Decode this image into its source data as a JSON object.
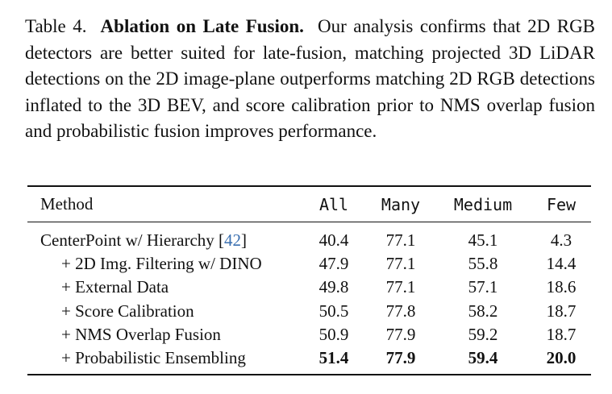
{
  "caption": {
    "label": "Table 4.",
    "title": "Ablation on Late Fusion.",
    "text": "Our analysis confirms that 2D RGB detectors are better suited for late-fusion, matching projected 3D LiDAR detections on the 2D image-plane outperforms matching 2D RGB detections inflated to the 3D BEV, and score calibration prior to NMS overlap fusion and probabilistic fusion improves performance."
  },
  "table": {
    "headers": {
      "method": "Method",
      "all": "All",
      "many": "Many",
      "medium": "Medium",
      "few": "Few"
    },
    "rows": [
      {
        "method": "CenterPoint w/ Hierarchy [",
        "cite": "42",
        "method_suffix": "]",
        "all": "40.4",
        "many": "77.1",
        "medium": "45.1",
        "few": "4.3"
      },
      {
        "method": "+ 2D Img. Filtering w/ DINO",
        "all": "47.9",
        "many": "77.1",
        "medium": "55.8",
        "few": "14.4"
      },
      {
        "method": "+ External Data",
        "all": "49.8",
        "many": "77.1",
        "medium": "57.1",
        "few": "18.6"
      },
      {
        "method": "+ Score Calibration",
        "all": "50.5",
        "many": "77.8",
        "medium": "58.2",
        "few": "18.7"
      },
      {
        "method": "+ NMS Overlap Fusion",
        "all": "50.9",
        "many": "77.9",
        "medium": "59.2",
        "few": "18.7"
      },
      {
        "method": "+ Probabilistic Ensembling",
        "all": "51.4",
        "many": "77.9",
        "medium": "59.4",
        "few": "20.0"
      }
    ]
  },
  "colors": {
    "text": "#111111",
    "citation": "#3a6fb0"
  }
}
